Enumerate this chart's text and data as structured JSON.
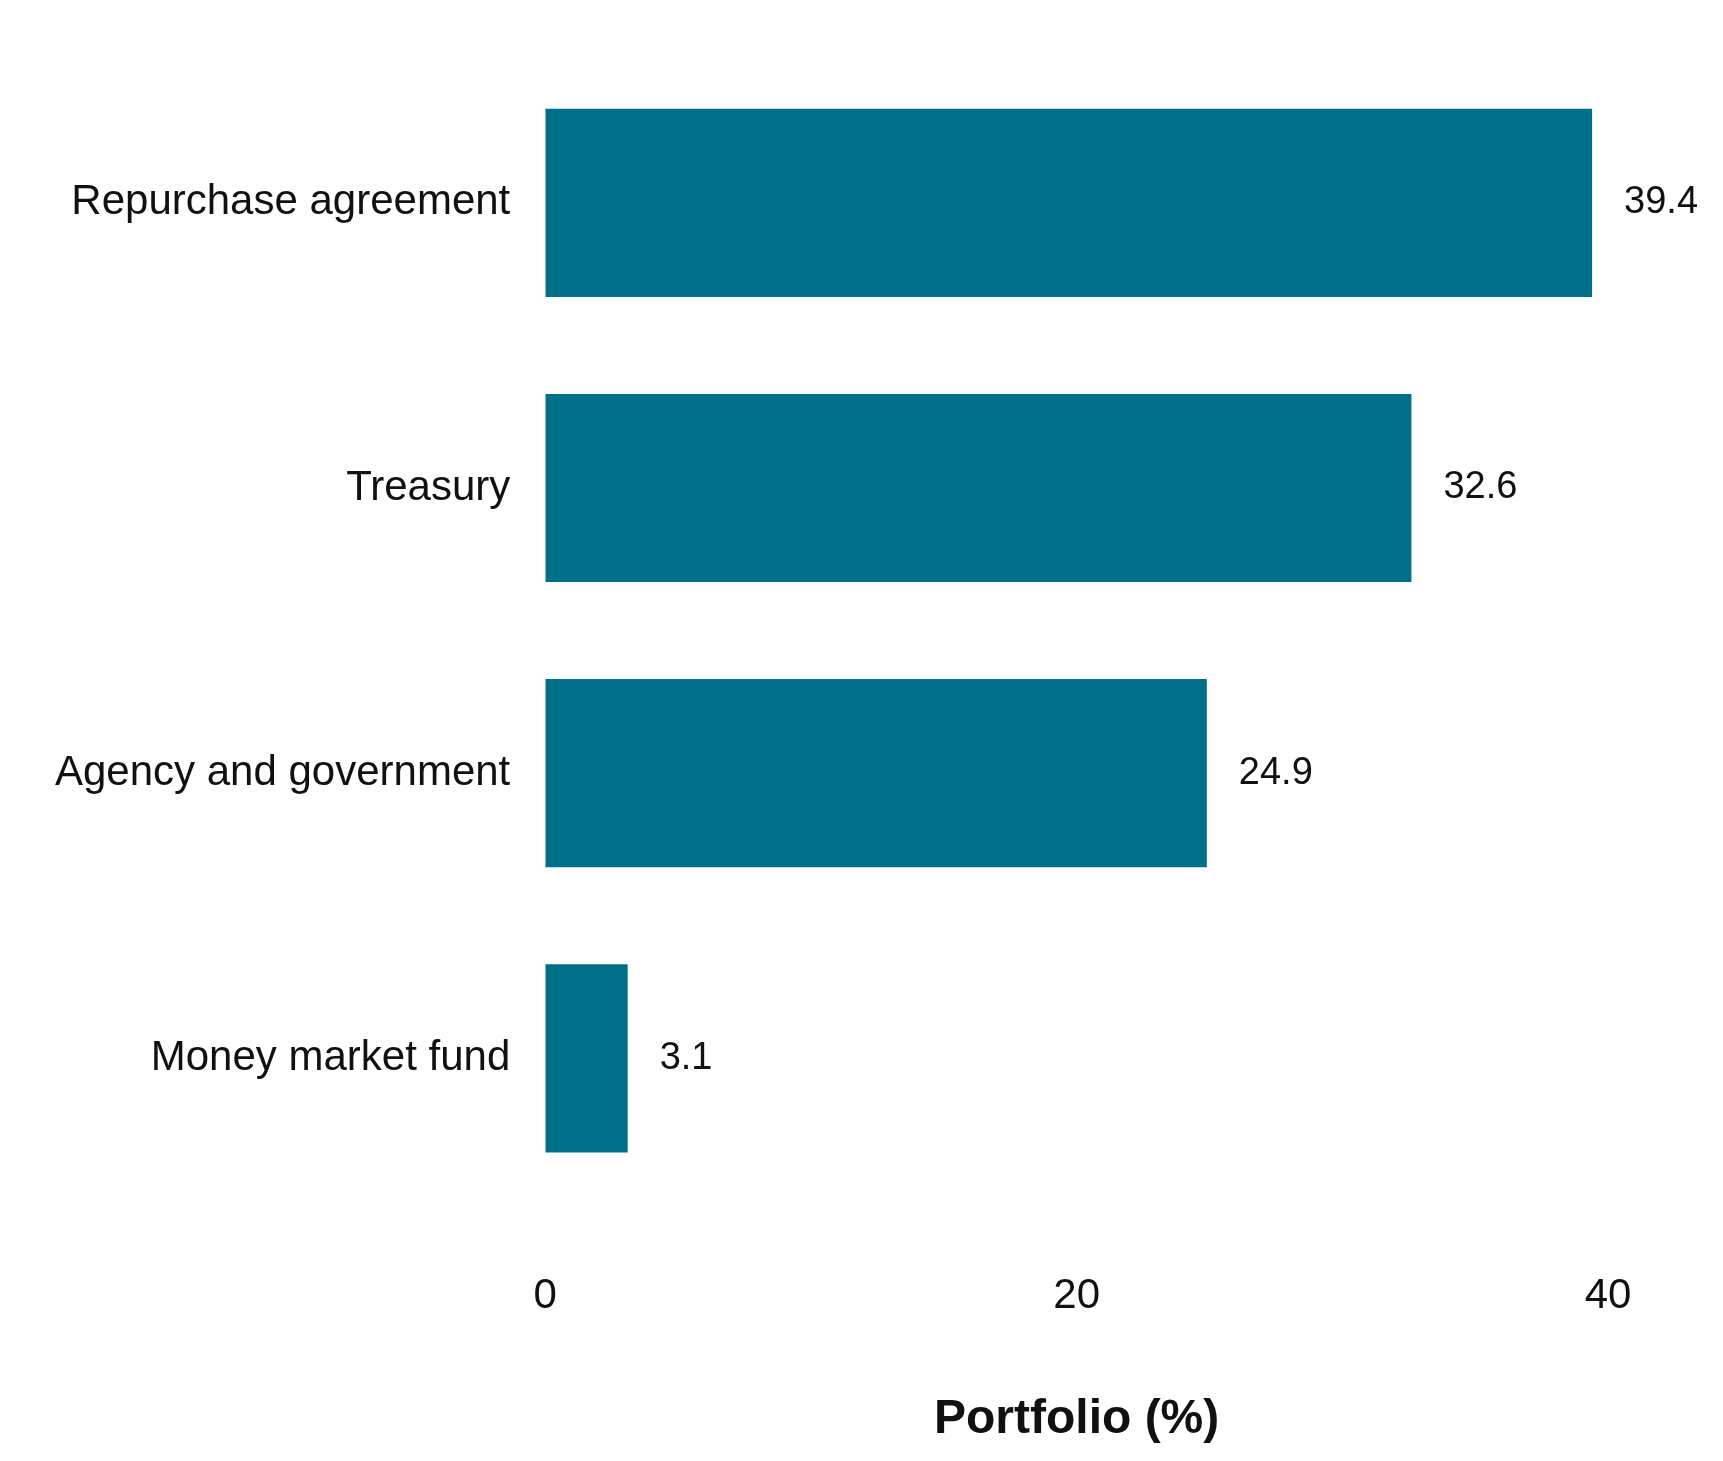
{
  "chart_data": {
    "type": "bar",
    "orientation": "horizontal",
    "xlabel": "Portfolio (%)",
    "categories": [
      "Repurchase agreement",
      "Treasury",
      "Agency and government",
      "Money market fund"
    ],
    "values": [
      39.4,
      32.6,
      24.9,
      3.1
    ],
    "color": "#006f88",
    "xlim": [
      0,
      40
    ],
    "xticks": [
      0,
      20,
      40
    ],
    "grid": false,
    "legend": false,
    "data_labels": true
  }
}
